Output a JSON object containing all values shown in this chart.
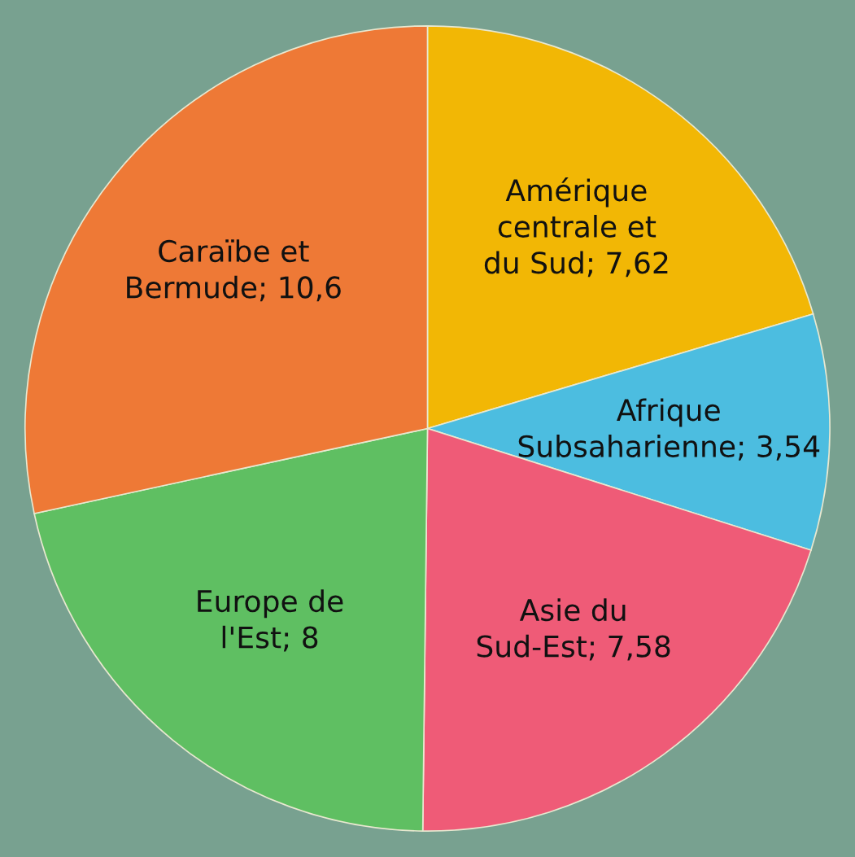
{
  "chart_data": {
    "type": "pie",
    "categories": [
      "Amérique centrale et du Sud",
      "Afrique Subsaharienne",
      "Asie du Sud-Est",
      "Europe de l'Est",
      "Caraïbe et Bermude"
    ],
    "values": [
      7.62,
      3.54,
      7.58,
      8,
      10.6
    ],
    "value_labels": [
      "7,62",
      "3,54",
      "7,58",
      "8",
      "10,6"
    ],
    "colors": [
      "#f2b705",
      "#4cbde0",
      "#ef5b77",
      "#5fbf62",
      "#ee7936"
    ],
    "legend": false
  }
}
